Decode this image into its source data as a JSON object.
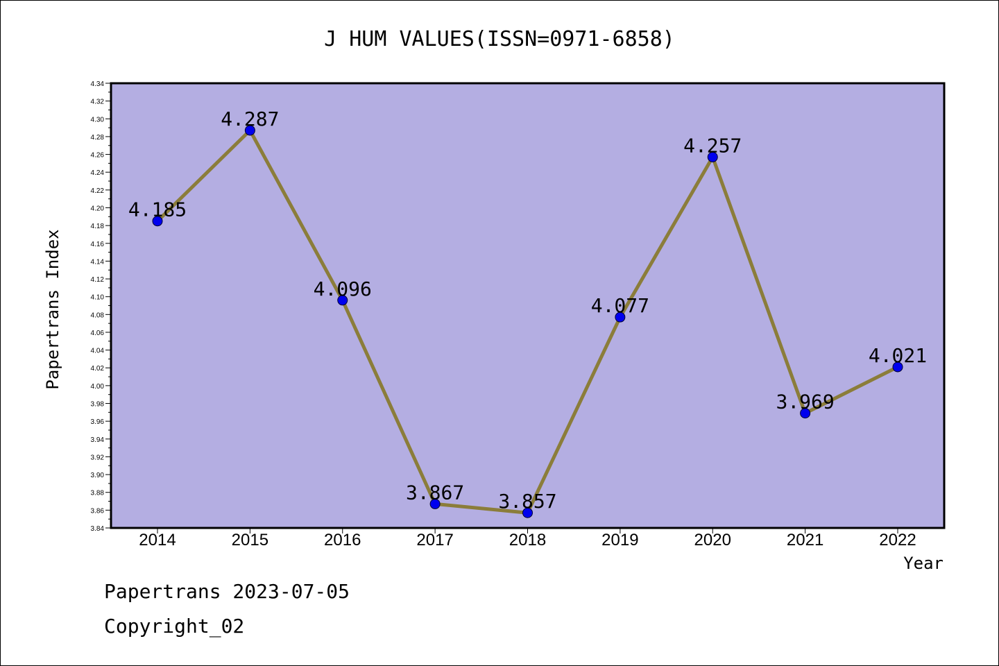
{
  "chart_data": {
    "type": "line",
    "title": "J HUM VALUES(ISSN=0971-6858)",
    "xlabel": "Year",
    "ylabel": "Papertrans Index",
    "categories": [
      "2014",
      "2015",
      "2016",
      "2017",
      "2018",
      "2019",
      "2020",
      "2021",
      "2022"
    ],
    "values": [
      4.185,
      4.287,
      4.096,
      3.867,
      3.857,
      4.077,
      4.257,
      3.969,
      4.021
    ],
    "data_labels": [
      "4.185",
      "4.287",
      "4.096",
      "3.867",
      "3.857",
      "4.077",
      "4.257",
      "3.969",
      "4.021"
    ],
    "ylim": [
      3.84,
      4.34
    ],
    "yticks": [
      "3.84",
      "3.86",
      "3.88",
      "3.90",
      "3.92",
      "3.94",
      "3.96",
      "3.98",
      "4.00",
      "4.02",
      "4.04",
      "4.06",
      "4.08",
      "4.10",
      "4.12",
      "4.14",
      "4.16",
      "4.18",
      "4.20",
      "4.22",
      "4.24",
      "4.26",
      "4.28",
      "4.30",
      "4.32",
      "4.34"
    ],
    "grid": false,
    "legend": "none",
    "colors": {
      "plot_background": "#b4aee2",
      "line": "#8b7d3a",
      "marker": "#0000ee"
    }
  },
  "footer": {
    "line1": "Papertrans 2023-07-05",
    "line2": "Copyright_02"
  }
}
